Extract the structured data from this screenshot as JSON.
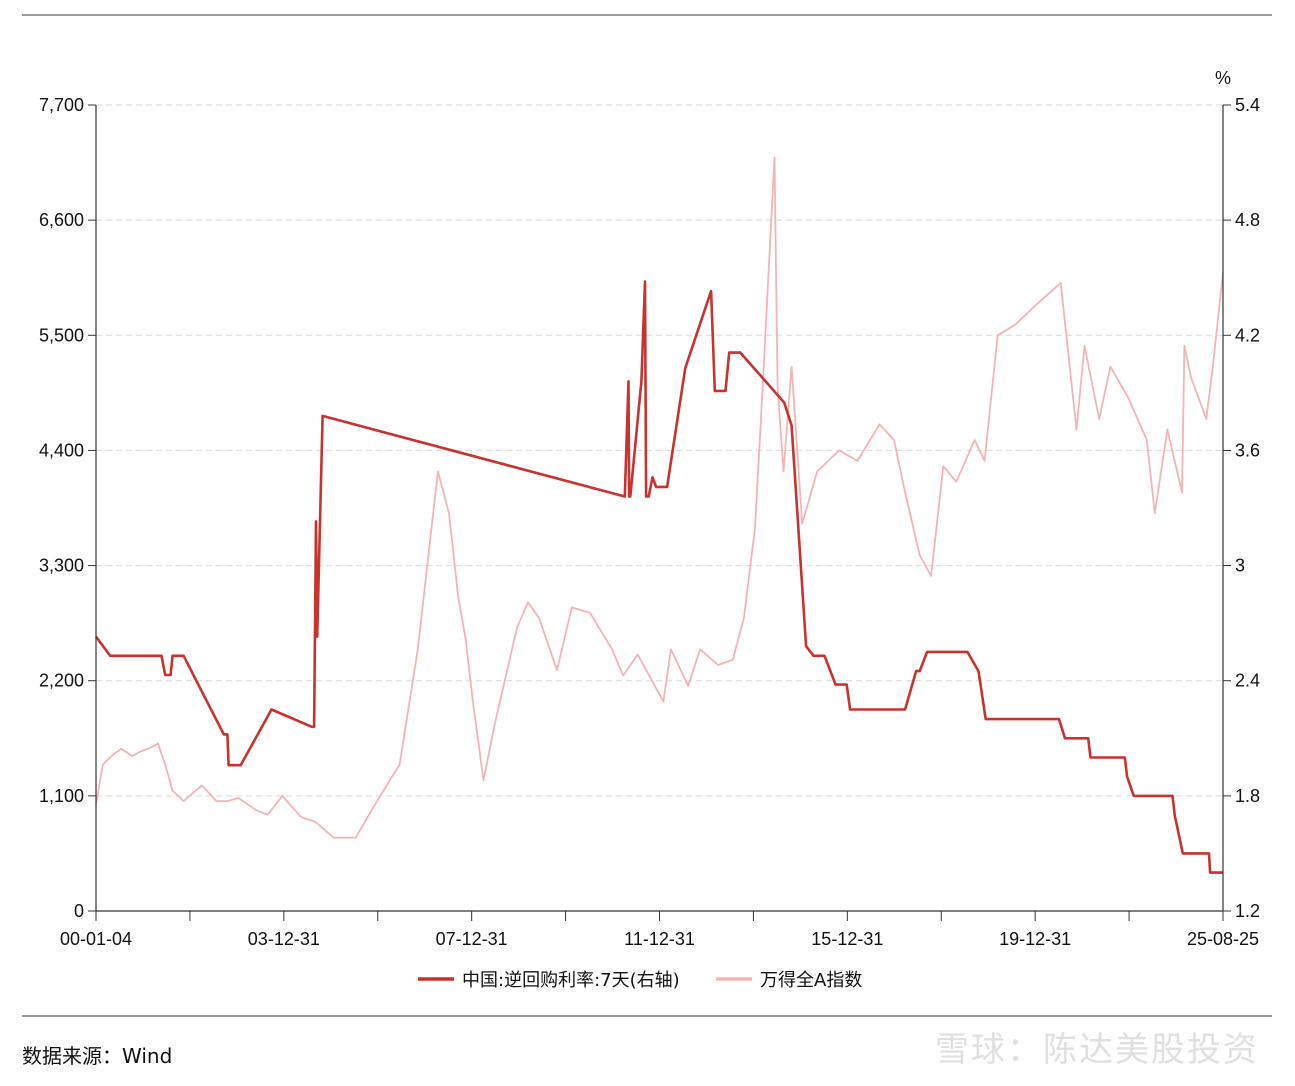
{
  "chart_data": {
    "type": "line",
    "title": "",
    "x_tick_labels": [
      "00-01-04",
      "03-12-31",
      "07-12-31",
      "11-12-31",
      "15-12-31",
      "19-12-31",
      "25-08-25"
    ],
    "y_left": {
      "ticks": [
        "0",
        "1,100",
        "2,200",
        "3,300",
        "4,400",
        "5,500",
        "6,600",
        "7,700"
      ],
      "ylim": [
        0,
        7700
      ]
    },
    "y_right": {
      "unit": "%",
      "ticks": [
        "1.2",
        "1.8",
        "2.4",
        "3",
        "3.6",
        "4.2",
        "4.8",
        "5.4"
      ],
      "ylim": [
        1.2,
        5.4
      ]
    },
    "grid": "horizontal dashed",
    "legend_position": "bottom",
    "colors": {
      "repo": "#c8322f",
      "index": "#f2b5b5"
    },
    "series": [
      {
        "name": "中国:逆回购利率:7天(右轴)",
        "axis": "right",
        "color": "#c8322f",
        "points": [
          [
            "2000-01-04",
            2.63
          ],
          [
            "2000-05-01",
            2.53
          ],
          [
            "2001-07-01",
            2.53
          ],
          [
            "2001-08-01",
            2.43
          ],
          [
            "2001-09-15",
            2.43
          ],
          [
            "2001-10-01",
            2.53
          ],
          [
            "2002-01-01",
            2.53
          ],
          [
            "2002-12-01",
            2.12
          ],
          [
            "2002-12-31",
            2.12
          ],
          [
            "2003-01-10",
            1.96
          ],
          [
            "2003-04-20",
            1.96
          ],
          [
            "2004-01-01",
            2.25
          ],
          [
            "2004-12-01",
            2.16
          ],
          [
            "2004-12-20",
            2.16
          ],
          [
            "2005-01-05",
            3.23
          ],
          [
            "2005-01-15",
            2.63
          ],
          [
            "2005-03-01",
            3.78
          ],
          [
            "2012-01-15",
            3.36
          ],
          [
            "2012-02-15",
            3.96
          ],
          [
            "2012-02-20",
            3.36
          ],
          [
            "2012-03-01",
            3.36
          ],
          [
            "2012-06-01",
            3.96
          ],
          [
            "2012-07-01",
            4.48
          ],
          [
            "2012-07-10",
            3.36
          ],
          [
            "2012-08-01",
            3.36
          ],
          [
            "2012-09-01",
            3.46
          ],
          [
            "2012-10-01",
            3.41
          ],
          [
            "2013-01-01",
            3.41
          ],
          [
            "2013-06-01",
            4.03
          ],
          [
            "2014-01-01",
            4.43
          ],
          [
            "2014-02-01",
            3.91
          ],
          [
            "2014-05-01",
            3.91
          ],
          [
            "2014-06-01",
            4.11
          ],
          [
            "2014-09-01",
            4.11
          ],
          [
            "2015-09-01",
            3.85
          ],
          [
            "2015-11-01",
            3.73
          ],
          [
            "2016-03-01",
            2.58
          ],
          [
            "2016-05-01",
            2.53
          ],
          [
            "2016-08-01",
            2.53
          ],
          [
            "2016-11-01",
            2.38
          ],
          [
            "2017-02-01",
            2.38
          ],
          [
            "2017-03-01",
            2.25
          ],
          [
            "2017-03-15",
            2.25
          ],
          [
            "2017-04-01",
            2.25
          ],
          [
            "2018-06-01",
            2.25
          ],
          [
            "2018-09-01",
            2.45
          ],
          [
            "2018-10-01",
            2.45
          ],
          [
            "2018-12-01",
            2.55
          ],
          [
            "2019-03-01",
            2.55
          ],
          [
            "2019-05-01",
            2.55
          ],
          [
            "2019-07-01",
            2.55
          ],
          [
            "2019-09-01",
            2.55
          ],
          [
            "2019-11-01",
            2.55
          ],
          [
            "2020-02-01",
            2.45
          ],
          [
            "2020-04-01",
            2.2
          ],
          [
            "2021-12-01",
            2.2
          ],
          [
            "2022-01-20",
            2.1
          ],
          [
            "2022-08-01",
            2.1
          ],
          [
            "2022-08-20",
            2.0
          ],
          [
            "2023-06-01",
            2.0
          ],
          [
            "2023-06-20",
            1.9
          ],
          [
            "2023-08-15",
            1.8
          ],
          [
            "2024-07-01",
            1.8
          ],
          [
            "2024-07-20",
            1.7
          ],
          [
            "2024-09-25",
            1.5
          ],
          [
            "2025-05-01",
            1.5
          ],
          [
            "2025-05-10",
            1.4
          ],
          [
            "2025-08-25",
            1.4
          ]
        ]
      },
      {
        "name": "万得全A指数",
        "axis": "left",
        "color": "#f2b5b5",
        "points": [
          [
            "2000-01-04",
            1020
          ],
          [
            "2000-03-01",
            1400
          ],
          [
            "2000-06-01",
            1500
          ],
          [
            "2000-08-01",
            1550
          ],
          [
            "2000-11-01",
            1480
          ],
          [
            "2001-01-01",
            1520
          ],
          [
            "2001-04-01",
            1560
          ],
          [
            "2001-06-01",
            1600
          ],
          [
            "2001-08-01",
            1400
          ],
          [
            "2001-10-01",
            1150
          ],
          [
            "2002-01-01",
            1050
          ],
          [
            "2002-06-01",
            1200
          ],
          [
            "2002-10-01",
            1050
          ],
          [
            "2003-01-01",
            1050
          ],
          [
            "2003-04-01",
            1080
          ],
          [
            "2003-09-01",
            960
          ],
          [
            "2003-12-01",
            920
          ],
          [
            "2004-04-01",
            1100
          ],
          [
            "2004-09-01",
            900
          ],
          [
            "2005-01-01",
            850
          ],
          [
            "2005-06-01",
            700
          ],
          [
            "2005-12-01",
            700
          ],
          [
            "2006-05-01",
            1000
          ],
          [
            "2006-12-01",
            1400
          ],
          [
            "2007-05-01",
            2500
          ],
          [
            "2007-10-15",
            4200
          ],
          [
            "2008-01-15",
            3800
          ],
          [
            "2008-04-01",
            3000
          ],
          [
            "2008-06-01",
            2600
          ],
          [
            "2008-08-01",
            2000
          ],
          [
            "2008-10-28",
            1250
          ],
          [
            "2009-02-01",
            1800
          ],
          [
            "2009-08-01",
            2700
          ],
          [
            "2009-11-01",
            2950
          ],
          [
            "2010-02-01",
            2800
          ],
          [
            "2010-07-01",
            2300
          ],
          [
            "2010-11-01",
            2900
          ],
          [
            "2011-04-01",
            2850
          ],
          [
            "2011-10-01",
            2500
          ],
          [
            "2012-01-01",
            2250
          ],
          [
            "2012-05-01",
            2450
          ],
          [
            "2012-12-01",
            2000
          ],
          [
            "2013-02-01",
            2500
          ],
          [
            "2013-06-25",
            2150
          ],
          [
            "2013-10-01",
            2500
          ],
          [
            "2014-03-01",
            2350
          ],
          [
            "2014-07-01",
            2400
          ],
          [
            "2014-10-01",
            2800
          ],
          [
            "2014-12-31",
            3650
          ],
          [
            "2015-03-01",
            4900
          ],
          [
            "2015-06-12",
            7200
          ],
          [
            "2015-07-08",
            5000
          ],
          [
            "2015-08-26",
            4200
          ],
          [
            "2015-11-01",
            5200
          ],
          [
            "2016-01-28",
            3700
          ],
          [
            "2016-06-01",
            4200
          ],
          [
            "2016-12-01",
            4400
          ],
          [
            "2017-05-01",
            4300
          ],
          [
            "2017-11-01",
            4650
          ],
          [
            "2018-03-01",
            4500
          ],
          [
            "2018-06-01",
            4000
          ],
          [
            "2018-10-01",
            3400
          ],
          [
            "2019-01-03",
            3200
          ],
          [
            "2019-04-15",
            4250
          ],
          [
            "2019-08-01",
            4100
          ],
          [
            "2019-12-31",
            4500
          ],
          [
            "2020-03-23",
            4300
          ],
          [
            "2020-07-10",
            5500
          ],
          [
            "2020-12-01",
            5600
          ],
          [
            "2021-06-01",
            5800
          ],
          [
            "2021-12-15",
            6000
          ],
          [
            "2022-04-26",
            4600
          ],
          [
            "2022-07-01",
            5400
          ],
          [
            "2022-10-31",
            4700
          ],
          [
            "2023-02-01",
            5200
          ],
          [
            "2023-07-01",
            4900
          ],
          [
            "2023-12-01",
            4500
          ],
          [
            "2024-02-05",
            3800
          ],
          [
            "2024-05-20",
            4600
          ],
          [
            "2024-09-18",
            4000
          ],
          [
            "2024-10-08",
            5400
          ],
          [
            "2024-12-01",
            5100
          ],
          [
            "2025-04-08",
            4700
          ],
          [
            "2025-06-01",
            5200
          ],
          [
            "2025-08-25",
            6100
          ]
        ]
      }
    ]
  },
  "footer": {
    "source": "数据来源：Wind",
    "watermark": "雪球：陈达美股投资"
  }
}
